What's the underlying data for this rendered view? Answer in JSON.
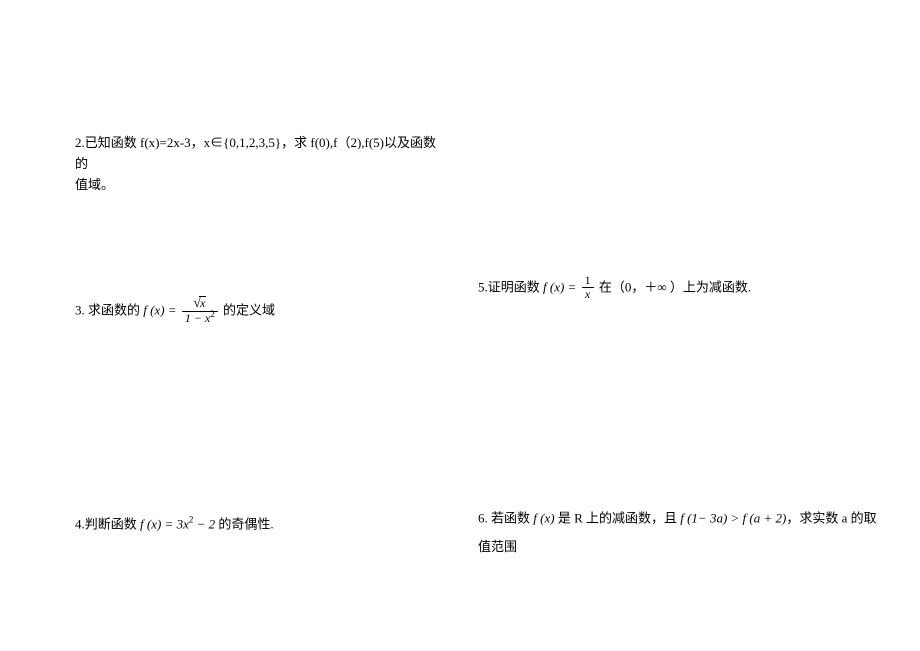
{
  "problems": {
    "p2": {
      "line1": "2.已知函数 f(x)=2x-3，x∈{0,1,2,3,5}，求 f(0),f（2),f(5)以及函数的",
      "line2": "值域。"
    },
    "p3": {
      "prefix": "3.  求函数的",
      "func": "f (x) =",
      "numerator_x": "x",
      "denominator": "1 − x",
      "den_exp": "2",
      "suffix": " 的定义域"
    },
    "p4": {
      "prefix": "4.判断函数 ",
      "func": "f (x) = 3x",
      "exp": "2",
      "mid": " − 2",
      "suffix": " 的奇偶性."
    },
    "p5": {
      "prefix": "5.证明函数 ",
      "func": "f (x) =",
      "num": "1",
      "den": "x",
      "suffix": " 在（0，＋∞ ）上为减函数."
    },
    "p6": {
      "line1_prefix": "6. 若函数 ",
      "func": "f (x)",
      "line1_mid": " 是 R 上的减函数，且 ",
      "ineq_left": "f (1− 3a) > f (a + 2)",
      "line1_suffix": "，求实数 a 的取",
      "line2": "值范围"
    }
  }
}
